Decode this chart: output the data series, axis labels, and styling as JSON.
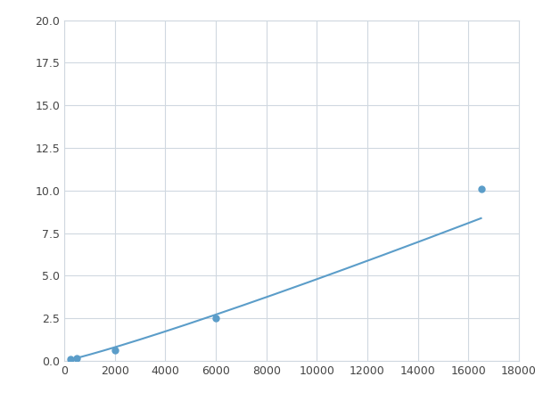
{
  "x": [
    250,
    500,
    2000,
    6000,
    16500
  ],
  "y": [
    0.1,
    0.15,
    0.65,
    2.5,
    10.1
  ],
  "line_color": "#5b9dc9",
  "marker_color": "#5b9dc9",
  "marker_size": 5,
  "xlim": [
    0,
    18000
  ],
  "ylim": [
    0,
    20
  ],
  "xticks": [
    0,
    2000,
    4000,
    6000,
    8000,
    10000,
    12000,
    14000,
    16000,
    18000
  ],
  "yticks": [
    0.0,
    2.5,
    5.0,
    7.5,
    10.0,
    12.5,
    15.0,
    17.5,
    20.0
  ],
  "grid_color": "#d0d8e0",
  "background_color": "#ffffff",
  "fig_bg_color": "#ffffff"
}
